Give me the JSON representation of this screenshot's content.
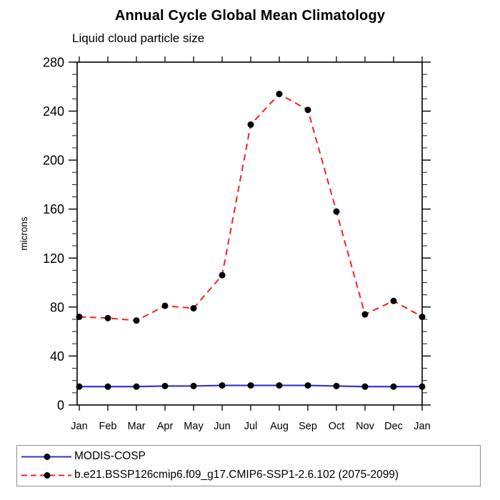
{
  "title": "Annual Cycle Global Mean Climatology",
  "subtitle": "Liquid cloud particle size",
  "chart_data": {
    "type": "line",
    "x_categories": [
      "Jan",
      "Feb",
      "Mar",
      "Apr",
      "May",
      "Jun",
      "Jul",
      "Aug",
      "Sep",
      "Oct",
      "Nov",
      "Dec",
      "Jan"
    ],
    "ylabel": "microns",
    "ylim": [
      0,
      280
    ],
    "ytick_major": 40,
    "ytick_minor": 10,
    "ytick_labels": [
      "0",
      "40",
      "80",
      "120",
      "160",
      "200",
      "240",
      "280"
    ],
    "grid": false,
    "legend_position": "bottom",
    "series": [
      {
        "name": "MODIS-COSP",
        "color": "#3232cc",
        "style": "solid",
        "marker": "black-dot",
        "values": [
          15,
          15,
          15,
          15.5,
          15.5,
          16,
          16,
          16,
          16,
          15.5,
          15,
          15,
          15
        ]
      },
      {
        "name": "b.e21.BSSP126cmip6.f09_g17.CMIP6-SSP1-2.6.102 (2075-2099)",
        "color": "#fb2020",
        "style": "dashed",
        "marker": "black-dot",
        "values": [
          72,
          71,
          69,
          81,
          79,
          106,
          229,
          254,
          241,
          158,
          74,
          85,
          72
        ]
      }
    ]
  }
}
